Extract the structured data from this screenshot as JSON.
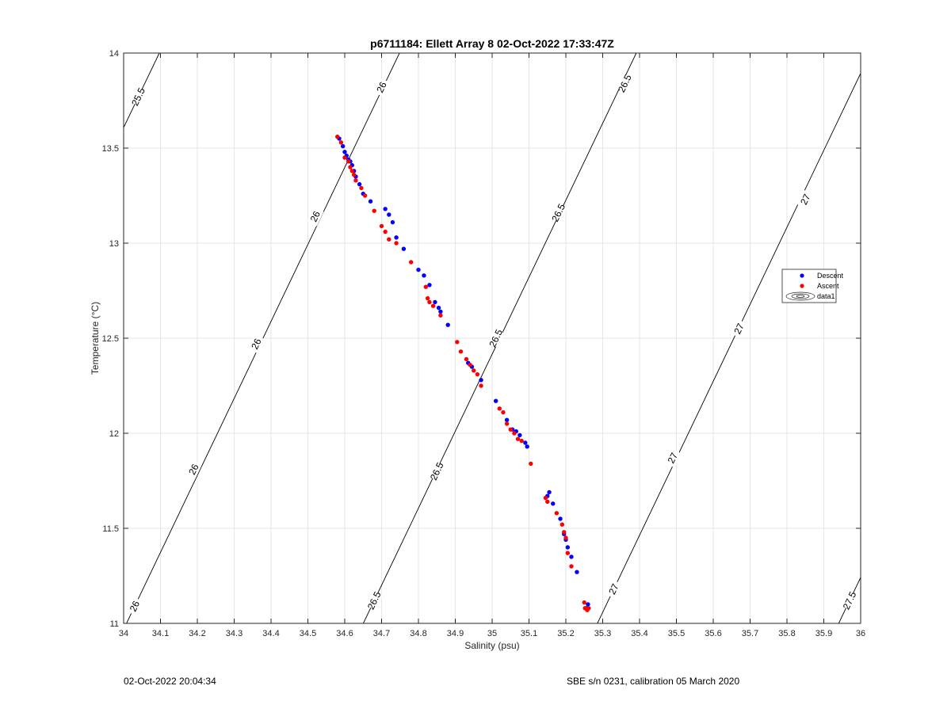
{
  "chart_data": {
    "type": "scatter",
    "title": "p6711184: Ellett Array 8 02-Oct-2022 17:33:47Z",
    "xlabel": "Salinity (psu)",
    "ylabel": "Temperature (°C)",
    "xlim": [
      34,
      36
    ],
    "ylim": [
      11,
      14
    ],
    "xticks": [
      "34",
      "34.1",
      "34.2",
      "34.3",
      "34.4",
      "34.5",
      "34.6",
      "34.7",
      "34.8",
      "34.9",
      "35",
      "35.1",
      "35.2",
      "35.3",
      "35.4",
      "35.5",
      "35.6",
      "35.7",
      "35.8",
      "35.9",
      "36"
    ],
    "yticks": [
      "11",
      "11.5",
      "12",
      "12.5",
      "13",
      "13.5",
      "14"
    ],
    "grid": true,
    "legend_position": "right",
    "legend": [
      "Descent",
      "Ascent",
      "data1"
    ],
    "colors": {
      "descent": "#0000ff",
      "ascent": "#ff0000",
      "contour": "#000000",
      "grid": "#e6e6e6"
    },
    "contours": [
      {
        "level": "25.5",
        "label_positions": [
          [
            34.04,
            13.77
          ]
        ]
      },
      {
        "level": "26",
        "label_positions": [
          [
            34.03,
            11.09
          ],
          [
            34.19,
            11.81
          ],
          [
            34.36,
            12.47
          ],
          [
            34.52,
            13.14
          ],
          [
            34.7,
            13.82
          ]
        ]
      },
      {
        "level": "26.5",
        "label_positions": [
          [
            34.68,
            11.12
          ],
          [
            34.85,
            11.8
          ],
          [
            35.01,
            12.5
          ],
          [
            35.18,
            13.16
          ],
          [
            35.36,
            13.84
          ]
        ]
      },
      {
        "level": "27",
        "label_positions": [
          [
            35.33,
            11.18
          ],
          [
            35.49,
            11.87
          ],
          [
            35.67,
            12.55
          ],
          [
            35.85,
            13.23
          ]
        ]
      },
      {
        "level": "27.5",
        "label_positions": [
          [
            35.97,
            11.12
          ]
        ]
      }
    ],
    "series": [
      {
        "name": "Descent",
        "points": [
          [
            34.585,
            13.55
          ],
          [
            34.595,
            13.51
          ],
          [
            34.6,
            13.48
          ],
          [
            34.605,
            13.46
          ],
          [
            34.61,
            13.44
          ],
          [
            34.615,
            13.43
          ],
          [
            34.62,
            13.41
          ],
          [
            34.625,
            13.38
          ],
          [
            34.63,
            13.35
          ],
          [
            34.64,
            13.31
          ],
          [
            34.65,
            13.26
          ],
          [
            34.67,
            13.22
          ],
          [
            34.71,
            13.18
          ],
          [
            34.72,
            13.15
          ],
          [
            34.73,
            13.11
          ],
          [
            34.74,
            13.03
          ],
          [
            34.76,
            12.97
          ],
          [
            34.8,
            12.86
          ],
          [
            34.815,
            12.83
          ],
          [
            34.83,
            12.78
          ],
          [
            34.845,
            12.69
          ],
          [
            34.855,
            12.66
          ],
          [
            34.86,
            12.64
          ],
          [
            34.88,
            12.57
          ],
          [
            34.935,
            12.37
          ],
          [
            34.945,
            12.35
          ],
          [
            34.97,
            12.28
          ],
          [
            35.01,
            12.17
          ],
          [
            35.04,
            12.07
          ],
          [
            35.055,
            12.02
          ],
          [
            35.065,
            12.01
          ],
          [
            35.075,
            11.99
          ],
          [
            35.09,
            11.95
          ],
          [
            35.095,
            11.93
          ],
          [
            35.15,
            11.67
          ],
          [
            35.155,
            11.69
          ],
          [
            35.165,
            11.63
          ],
          [
            35.185,
            11.55
          ],
          [
            35.195,
            11.47
          ],
          [
            35.2,
            11.44
          ],
          [
            35.205,
            11.4
          ],
          [
            35.215,
            11.35
          ],
          [
            35.23,
            11.27
          ],
          [
            35.255,
            11.08
          ],
          [
            35.26,
            11.1
          ]
        ]
      },
      {
        "name": "Ascent",
        "points": [
          [
            34.58,
            13.56
          ],
          [
            34.59,
            13.53
          ],
          [
            34.6,
            13.45
          ],
          [
            34.61,
            13.43
          ],
          [
            34.615,
            13.4
          ],
          [
            34.62,
            13.38
          ],
          [
            34.625,
            13.36
          ],
          [
            34.63,
            13.33
          ],
          [
            34.645,
            13.29
          ],
          [
            34.655,
            13.25
          ],
          [
            34.68,
            13.17
          ],
          [
            34.7,
            13.09
          ],
          [
            34.71,
            13.06
          ],
          [
            34.72,
            13.02
          ],
          [
            34.74,
            13.0
          ],
          [
            34.78,
            12.9
          ],
          [
            34.82,
            12.77
          ],
          [
            34.825,
            12.71
          ],
          [
            34.83,
            12.69
          ],
          [
            34.84,
            12.67
          ],
          [
            34.86,
            12.62
          ],
          [
            34.905,
            12.48
          ],
          [
            34.915,
            12.43
          ],
          [
            34.93,
            12.39
          ],
          [
            34.94,
            12.36
          ],
          [
            34.95,
            12.33
          ],
          [
            34.96,
            12.31
          ],
          [
            34.97,
            12.25
          ],
          [
            35.02,
            12.13
          ],
          [
            35.03,
            12.11
          ],
          [
            35.04,
            12.05
          ],
          [
            35.05,
            12.02
          ],
          [
            35.06,
            12.0
          ],
          [
            35.07,
            11.97
          ],
          [
            35.08,
            11.96
          ],
          [
            35.105,
            11.84
          ],
          [
            35.145,
            11.66
          ],
          [
            35.15,
            11.64
          ],
          [
            35.175,
            11.58
          ],
          [
            35.19,
            11.52
          ],
          [
            35.195,
            11.48
          ],
          [
            35.2,
            11.45
          ],
          [
            35.205,
            11.37
          ],
          [
            35.215,
            11.3
          ],
          [
            35.25,
            11.11
          ],
          [
            35.252,
            11.08
          ],
          [
            35.258,
            11.07
          ],
          [
            35.262,
            11.08
          ]
        ]
      }
    ]
  },
  "footer": {
    "left": "02-Oct-2022 20:04:34",
    "right": "SBE s/n 0231, calibration 05 March 2020"
  }
}
